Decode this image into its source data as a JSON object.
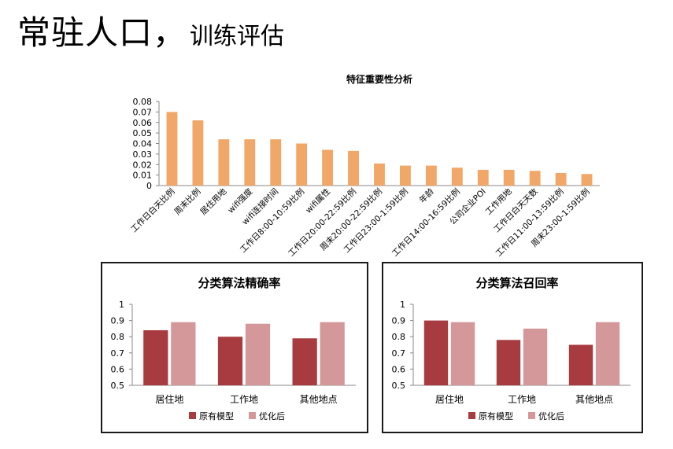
{
  "slide": {
    "title_main": "常驻人口，",
    "title_sub": "训练评估"
  },
  "colors": {
    "feature_bar": "#f0a767",
    "original_model": "#a83b3f",
    "optimized": "#d4979a"
  },
  "chart_data": [
    {
      "type": "bar",
      "title": "特征重要性分析",
      "categories": [
        "工作日白天比例",
        "周末比例",
        "居住用地",
        "wifi强度",
        "wifi连接时间",
        "工作日8:00-10:59比例",
        "wifi属性",
        "工作日20:00-22:59比例",
        "周末20:00-22:59比例",
        "工作日23:00-1:59比例",
        "年龄",
        "工作日14:00-16:59比例",
        "公司企业POI",
        "工作用地",
        "工作日白天天数",
        "工作日11:00-13:59比例",
        "周末23:00-1:59比例"
      ],
      "values": [
        0.07,
        0.062,
        0.044,
        0.044,
        0.044,
        0.04,
        0.034,
        0.033,
        0.021,
        0.019,
        0.019,
        0.017,
        0.015,
        0.015,
        0.014,
        0.012,
        0.011
      ],
      "yticks": [
        "0.08",
        "0.07",
        "0.06",
        "0.05",
        "0.04",
        "0.03",
        "0.02",
        "0.01",
        "0"
      ],
      "ylim": [
        0,
        0.08
      ],
      "grid": false,
      "legend": "none"
    },
    {
      "type": "bar",
      "title": "分类算法精确率",
      "categories": [
        "居住地",
        "工作地",
        "其他地点"
      ],
      "series": [
        {
          "name": "原有模型",
          "values": [
            0.84,
            0.8,
            0.79
          ]
        },
        {
          "name": "优化后",
          "values": [
            0.89,
            0.88,
            0.89
          ]
        }
      ],
      "yticks": [
        "1",
        "0.9",
        "0.8",
        "0.7",
        "0.6",
        "0.5"
      ],
      "ylim": [
        0.5,
        1
      ],
      "grid": false,
      "legend": "bottom"
    },
    {
      "type": "bar",
      "title": "分类算法召回率",
      "categories": [
        "居住地",
        "工作地",
        "其他地点"
      ],
      "series": [
        {
          "name": "原有模型",
          "values": [
            0.9,
            0.78,
            0.75
          ]
        },
        {
          "name": "优化后",
          "values": [
            0.89,
            0.85,
            0.89
          ]
        }
      ],
      "yticks": [
        "1",
        "0.9",
        "0.8",
        "0.7",
        "0.6",
        "0.5"
      ],
      "ylim": [
        0.5,
        1
      ],
      "grid": false,
      "legend": "bottom"
    }
  ]
}
